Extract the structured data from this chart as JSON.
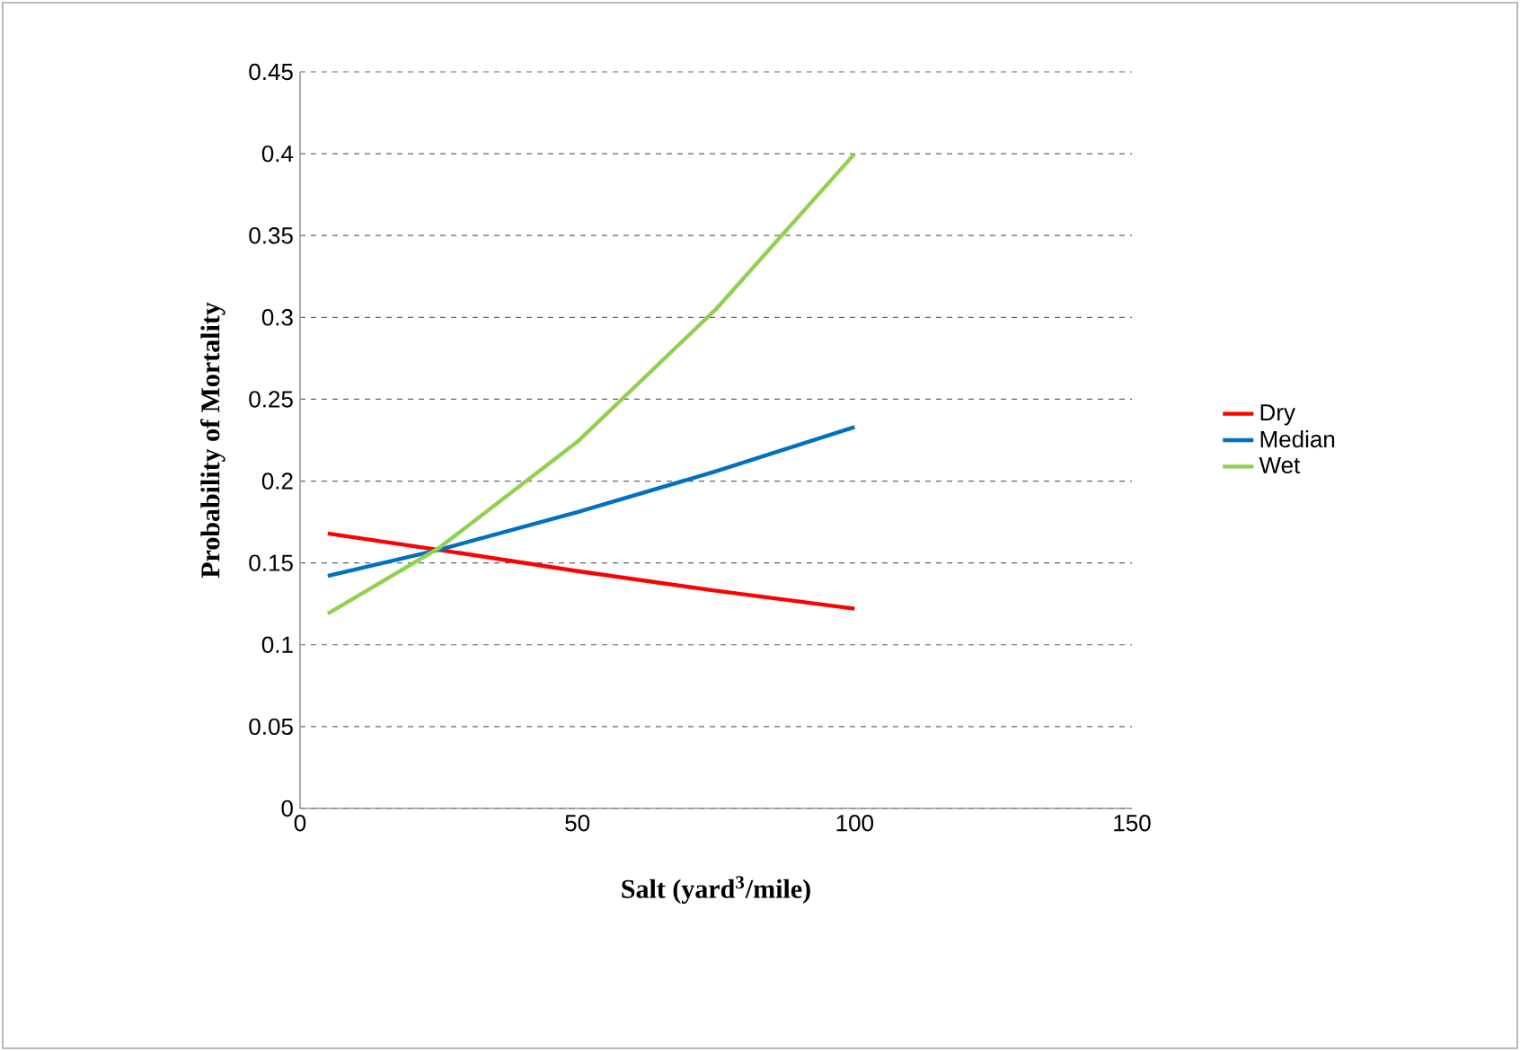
{
  "chart_data": {
    "type": "line",
    "xlabel": "Salt (yard$^{3}$/mile)",
    "ylabel": "Probability of Mortality",
    "xlim": [
      0,
      150
    ],
    "xticks": [
      0,
      50,
      100,
      150
    ],
    "ylim": [
      0,
      0.45
    ],
    "yticks": [
      0,
      0.05,
      0.1,
      0.15,
      0.2,
      0.25,
      0.3,
      0.35,
      0.4,
      0.45
    ],
    "grid": "y",
    "legend": "right",
    "marker": "none",
    "line_style": "solid",
    "series": [
      {
        "name": "Dry",
        "color": "#ff0000",
        "x": [
          5,
          25,
          50,
          75,
          100
        ],
        "values": [
          0.168,
          0.158,
          0.145,
          0.133,
          0.122
        ]
      },
      {
        "name": "Median",
        "color": "#0070c0",
        "x": [
          5,
          25,
          50,
          75,
          100
        ],
        "values": [
          0.142,
          0.158,
          0.181,
          0.206,
          0.233
        ]
      },
      {
        "name": "Wet",
        "color": "#92d050",
        "x": [
          5,
          25,
          50,
          75,
          100
        ],
        "values": [
          0.119,
          0.159,
          0.224,
          0.305,
          0.4
        ]
      }
    ]
  }
}
